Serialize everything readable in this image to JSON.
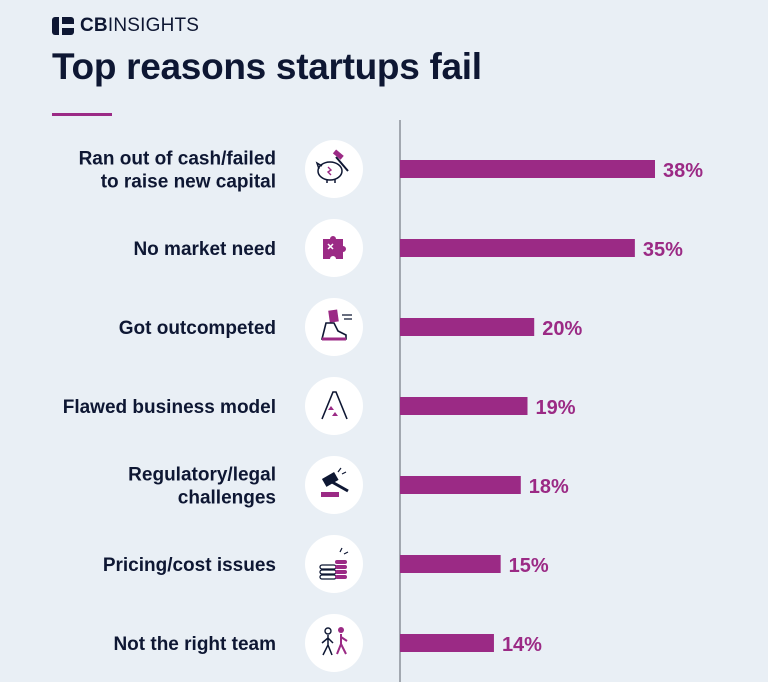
{
  "brand": {
    "name_bold": "CB",
    "name_light": "INSIGHTS"
  },
  "title": "Top reasons startups fail",
  "colors": {
    "background": "#e9eff5",
    "bar": "#9b2a85",
    "text": "#0e1733",
    "value_label": "#9b2a85",
    "axis": "#8a9099",
    "icon_circle": "#ffffff"
  },
  "chart_data": {
    "type": "bar",
    "orientation": "horizontal",
    "title": "Top reasons startups fail",
    "categories": [
      "Ran out of cash/failed\nto raise new capital",
      "No market need",
      "Got outcompeted",
      "Flawed business model",
      "Regulatory/legal\nchallenges",
      "Pricing/cost issues",
      "Not the right team"
    ],
    "values": [
      38,
      35,
      20,
      19,
      18,
      15,
      14
    ],
    "value_labels": [
      "38%",
      "35%",
      "20%",
      "19%",
      "18%",
      "15%",
      "14%"
    ],
    "icons": [
      "piggy-bank-hammer-icon",
      "puzzle-piece-icon",
      "running-shoe-icon",
      "house-of-cards-icon",
      "gavel-icon",
      "coin-stack-icon",
      "people-walking-icon"
    ],
    "xlim": [
      0,
      38
    ],
    "xlabel": "",
    "ylabel": "",
    "grid": false,
    "legend": "none"
  }
}
